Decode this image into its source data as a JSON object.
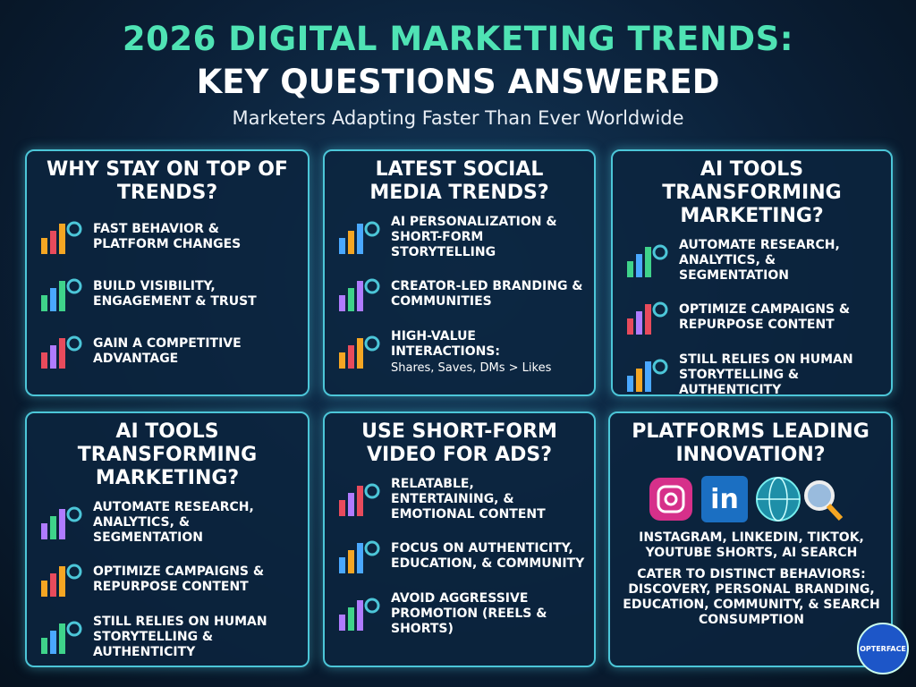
{
  "header": {
    "title_line1": "2026 DIGITAL MARKETING TRENDS:",
    "title_line2": "KEY QUESTIONS ANSWERED",
    "subtitle": "Marketers Adapting Faster Than Ever Worldwide"
  },
  "cards": [
    {
      "title": "WHY STAY ON TOP OF TRENDS?",
      "items": [
        {
          "text": "FAST BEHAVIOR & PLATFORM CHANGES"
        },
        {
          "text": "BUILD VISIBILITY, ENGAGEMENT & TRUST"
        },
        {
          "text": "GAIN A COMPETITIVE ADVANTAGE"
        }
      ]
    },
    {
      "title": "LATEST SOCIAL MEDIA TRENDS?",
      "items": [
        {
          "text": "AI PERSONALIZATION & SHORT-FORM STORYTELLING"
        },
        {
          "text": "CREATOR-LED BRANDING & COMMUNITIES"
        },
        {
          "text": "HIGH-VALUE INTERACTIONS:",
          "sub": "Shares, Saves, DMs > Likes"
        }
      ]
    },
    {
      "title": "AI TOOLS TRANSFORMING MARKETING?",
      "items": [
        {
          "text": "AUTOMATE RESEARCH, ANALYTICS, & SEGMENTATION"
        },
        {
          "text": "OPTIMIZE CAMPAIGNS & REPURPOSE CONTENT"
        },
        {
          "text": "STILL RELIES ON HUMAN STORYTELLING & AUTHENTICITY"
        }
      ]
    },
    {
      "title": "AI TOOLS TRANSFORMING MARKETING?",
      "items": [
        {
          "text": "AUTOMATE RESEARCH, ANALYTICS, & SEGMENTATION"
        },
        {
          "text": "OPTIMIZE CAMPAIGNS & REPURPOSE CONTENT"
        },
        {
          "text": "STILL RELIES ON HUMAN STORYTELLING & AUTHENTICITY"
        }
      ]
    },
    {
      "title": "USE SHORT-FORM VIDEO FOR ADS?",
      "items": [
        {
          "text": "RELATABLE, ENTERTAINING, & EMOTIONAL CONTENT"
        },
        {
          "text": "FOCUS ON AUTHENTICITY, EDUCATION, & COMMUNITY"
        },
        {
          "text": "AVOID AGGRESSIVE PROMOTION (REELS & SHORTS)"
        }
      ]
    },
    {
      "title": "PLATFORMS LEADING INNOVATION?",
      "icon_text": "in",
      "items": [
        {
          "text": "INSTAGRAM, LINKEDIN, TIKTOK, YOUTUBE SHORTS, AI SEARCH"
        },
        {
          "text": "CATER TO DISTINCT BEHAVIORS: DISCOVERY, PERSONAL BRANDING, EDUCATION, COMMUNITY, & SEARCH CONSUMPTION"
        }
      ]
    }
  ],
  "badge": "OPTERFACE"
}
